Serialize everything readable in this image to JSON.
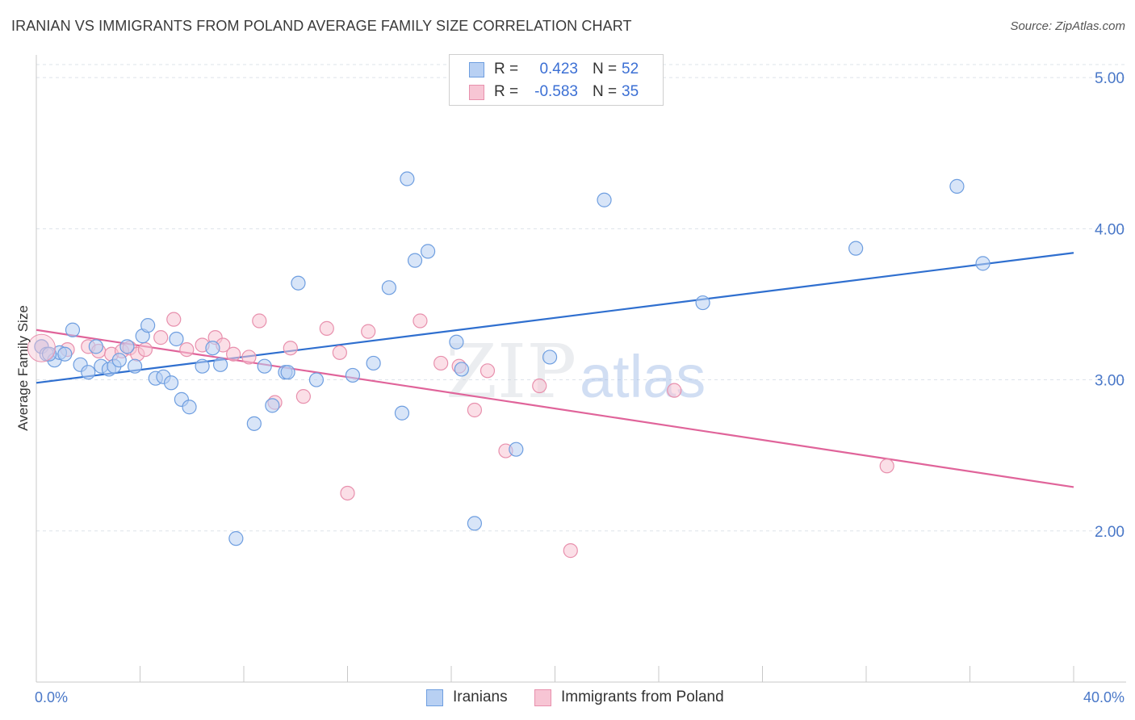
{
  "title": "IRANIAN VS IMMIGRANTS FROM POLAND AVERAGE FAMILY SIZE CORRELATION CHART",
  "source": "Source: ZipAtlas.com",
  "watermark": {
    "zip": "ZIP",
    "atlas": "atlas"
  },
  "legend": {
    "rows": [
      {
        "r_label": "R =",
        "r_value": "0.423",
        "n_label": "N =",
        "n_value": "52"
      },
      {
        "r_label": "R =",
        "r_value": "-0.583",
        "n_label": "N =",
        "n_value": "35"
      }
    ]
  },
  "bottom_legend": {
    "series1": "Iranians",
    "series2": "Immigrants from Poland"
  },
  "colors": {
    "blue_fill": "#b8d0f3",
    "blue_stroke": "#6e9ee0",
    "blue_line": "#2f6fcf",
    "pink_fill": "#f7c5d4",
    "pink_stroke": "#e890ad",
    "pink_line": "#e0649a",
    "axis_text": "#4a78c8",
    "grid": "#dde3ea"
  },
  "chart_data": {
    "type": "scatter",
    "title": "IRANIAN VS IMMIGRANTS FROM POLAND AVERAGE FAMILY SIZE CORRELATION CHART",
    "xlabel": "",
    "ylabel": "Average Family Size",
    "xlim": [
      0,
      40
    ],
    "ylim": [
      1.0,
      5.15
    ],
    "x_tick_labels": [
      "0.0%",
      "40.0%"
    ],
    "y_ticks": [
      2.0,
      3.0,
      4.0,
      5.0
    ],
    "y_tick_labels": [
      "2.00",
      "3.00",
      "4.00",
      "5.00"
    ],
    "grid": true,
    "series": [
      {
        "name": "Iranians",
        "points": [
          [
            0.2,
            3.22
          ],
          [
            0.4,
            3.17
          ],
          [
            0.7,
            3.13
          ],
          [
            0.9,
            3.18
          ],
          [
            1.1,
            3.17
          ],
          [
            1.4,
            3.33
          ],
          [
            1.7,
            3.1
          ],
          [
            2.0,
            3.05
          ],
          [
            2.3,
            3.22
          ],
          [
            2.5,
            3.09
          ],
          [
            2.8,
            3.07
          ],
          [
            3.0,
            3.09
          ],
          [
            3.2,
            3.13
          ],
          [
            3.5,
            3.22
          ],
          [
            3.8,
            3.09
          ],
          [
            4.1,
            3.29
          ],
          [
            4.3,
            3.36
          ],
          [
            4.6,
            3.01
          ],
          [
            4.9,
            3.02
          ],
          [
            5.2,
            2.98
          ],
          [
            5.4,
            3.27
          ],
          [
            5.6,
            2.87
          ],
          [
            5.9,
            2.82
          ],
          [
            6.4,
            3.09
          ],
          [
            6.8,
            3.21
          ],
          [
            7.1,
            3.1
          ],
          [
            7.7,
            1.95
          ],
          [
            8.4,
            2.71
          ],
          [
            8.8,
            3.09
          ],
          [
            9.1,
            2.83
          ],
          [
            9.6,
            3.05
          ],
          [
            10.1,
            3.64
          ],
          [
            10.8,
            3.0
          ],
          [
            12.2,
            3.03
          ],
          [
            13.0,
            3.11
          ],
          [
            13.6,
            3.61
          ],
          [
            14.1,
            2.78
          ],
          [
            14.3,
            4.33
          ],
          [
            14.6,
            3.79
          ],
          [
            15.1,
            3.85
          ],
          [
            16.2,
            3.25
          ],
          [
            16.4,
            3.07
          ],
          [
            16.9,
            2.05
          ],
          [
            18.5,
            2.54
          ],
          [
            19.8,
            3.15
          ],
          [
            21.9,
            4.19
          ],
          [
            25.7,
            3.51
          ],
          [
            31.6,
            3.87
          ],
          [
            35.5,
            4.28
          ],
          [
            36.5,
            3.77
          ],
          [
            0.5,
            3.17
          ],
          [
            9.7,
            3.05
          ]
        ]
      },
      {
        "name": "Immigrants from Poland",
        "points": [
          [
            0.2,
            3.22
          ],
          [
            1.2,
            3.2
          ],
          [
            2.0,
            3.22
          ],
          [
            2.4,
            3.19
          ],
          [
            2.9,
            3.17
          ],
          [
            3.3,
            3.19
          ],
          [
            3.6,
            3.21
          ],
          [
            3.9,
            3.17
          ],
          [
            4.2,
            3.2
          ],
          [
            4.8,
            3.28
          ],
          [
            5.3,
            3.4
          ],
          [
            5.8,
            3.2
          ],
          [
            6.4,
            3.23
          ],
          [
            6.9,
            3.28
          ],
          [
            7.2,
            3.23
          ],
          [
            7.6,
            3.17
          ],
          [
            8.2,
            3.15
          ],
          [
            8.6,
            3.39
          ],
          [
            9.2,
            2.85
          ],
          [
            9.8,
            3.21
          ],
          [
            10.3,
            2.89
          ],
          [
            11.2,
            3.34
          ],
          [
            11.7,
            3.18
          ],
          [
            12.0,
            2.25
          ],
          [
            12.8,
            3.32
          ],
          [
            14.8,
            3.39
          ],
          [
            15.6,
            3.11
          ],
          [
            16.3,
            3.09
          ],
          [
            16.9,
            2.8
          ],
          [
            17.4,
            3.06
          ],
          [
            18.1,
            2.53
          ],
          [
            19.4,
            2.96
          ],
          [
            20.6,
            1.87
          ],
          [
            24.6,
            2.93
          ],
          [
            32.8,
            2.43
          ]
        ]
      }
    ],
    "trendlines": [
      {
        "name": "Iranians",
        "x": [
          0,
          40
        ],
        "y": [
          2.98,
          3.84
        ]
      },
      {
        "name": "Immigrants from Poland",
        "x": [
          0,
          40
        ],
        "y": [
          3.33,
          2.29
        ]
      }
    ]
  }
}
